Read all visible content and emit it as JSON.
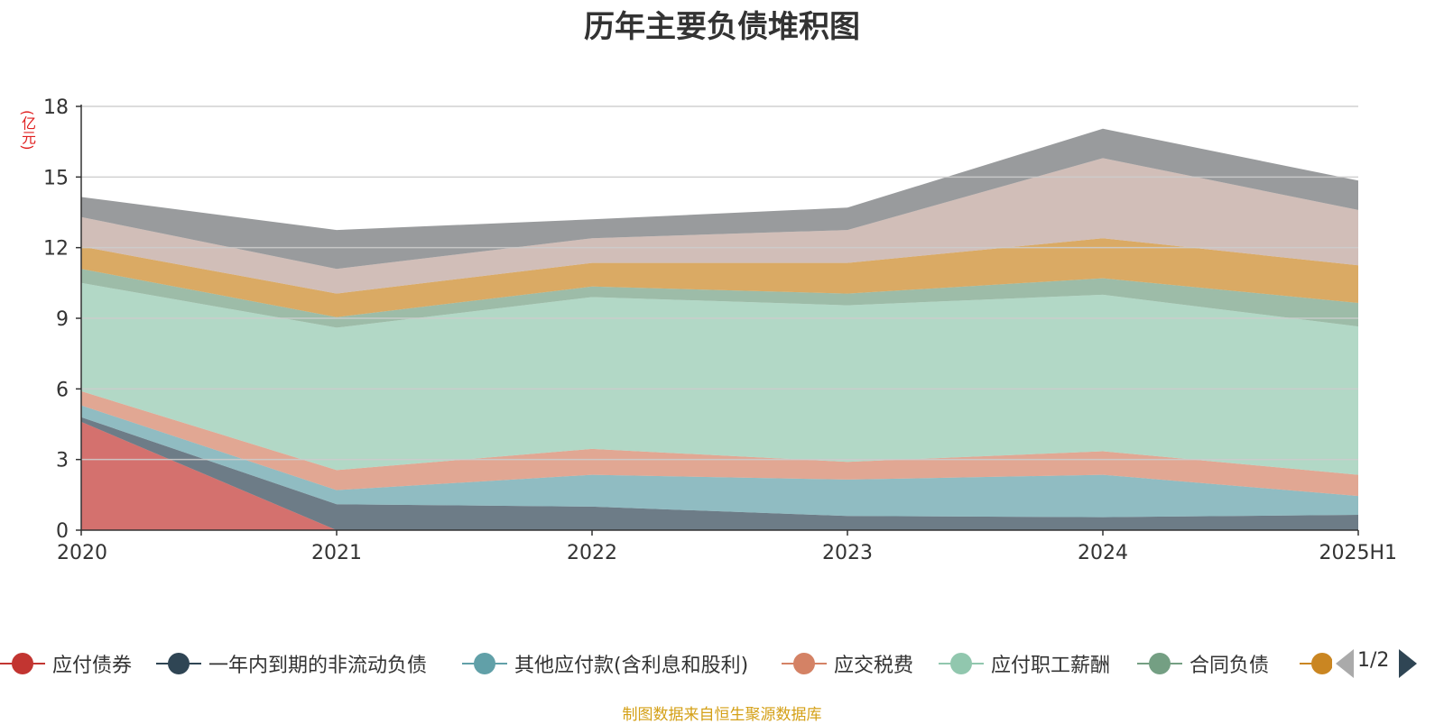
{
  "chart_data": {
    "type": "area",
    "stacked": true,
    "title": "历年主要负债堆积图",
    "y_unit": "(亿元)",
    "ylim": [
      0,
      18
    ],
    "y_ticks": [
      "0",
      "3",
      "6",
      "9",
      "12",
      "15",
      "18"
    ],
    "grid": true,
    "categories": [
      "2020",
      "2021",
      "2022",
      "2023",
      "2024",
      "2025H1"
    ],
    "series": [
      {
        "name": "应付债券",
        "color": "#c23531",
        "values": [
          4.6,
          0,
          0,
          0,
          0,
          0
        ]
      },
      {
        "name": "一年内到期的非流动负债",
        "color": "#2f4554",
        "values": [
          0.2,
          1.1,
          1.0,
          0.6,
          0.55,
          0.65
        ]
      },
      {
        "name": "其他应付款(含利息和股利)",
        "color": "#61a0a8",
        "values": [
          0.5,
          0.6,
          1.35,
          1.55,
          1.8,
          0.8
        ]
      },
      {
        "name": "应交税费",
        "color": "#d48265",
        "values": [
          0.6,
          0.85,
          1.1,
          0.75,
          1.0,
          0.9
        ]
      },
      {
        "name": "应付职工薪酬",
        "color": "#91c7ae",
        "values": [
          4.6,
          6.05,
          6.45,
          6.65,
          6.65,
          6.3
        ]
      },
      {
        "name": "合同负债",
        "color": "#749f83",
        "values": [
          0.6,
          0.45,
          0.45,
          0.5,
          0.7,
          1.0
        ]
      },
      {
        "name": "",
        "color": "#ca8622",
        "values": [
          0.95,
          1.0,
          1.0,
          1.3,
          1.7,
          1.6
        ]
      },
      {
        "name": "",
        "color": "#bda29a",
        "values": [
          1.25,
          1.05,
          1.05,
          1.4,
          3.4,
          2.35
        ]
      },
      {
        "name": "",
        "color": "#6e7074",
        "values": [
          0.85,
          1.65,
          0.8,
          0.95,
          1.25,
          1.25
        ]
      }
    ],
    "legend": {
      "position": "bottom",
      "items": [
        "应付债券",
        "一年内到期的非流动负债",
        "其他应付款(含利息和股利)",
        "应交税费",
        "应付职工薪酬",
        "合同负债"
      ],
      "page": "1/2"
    }
  },
  "footer": {
    "source": "制图数据来自恒生聚源数据库"
  }
}
